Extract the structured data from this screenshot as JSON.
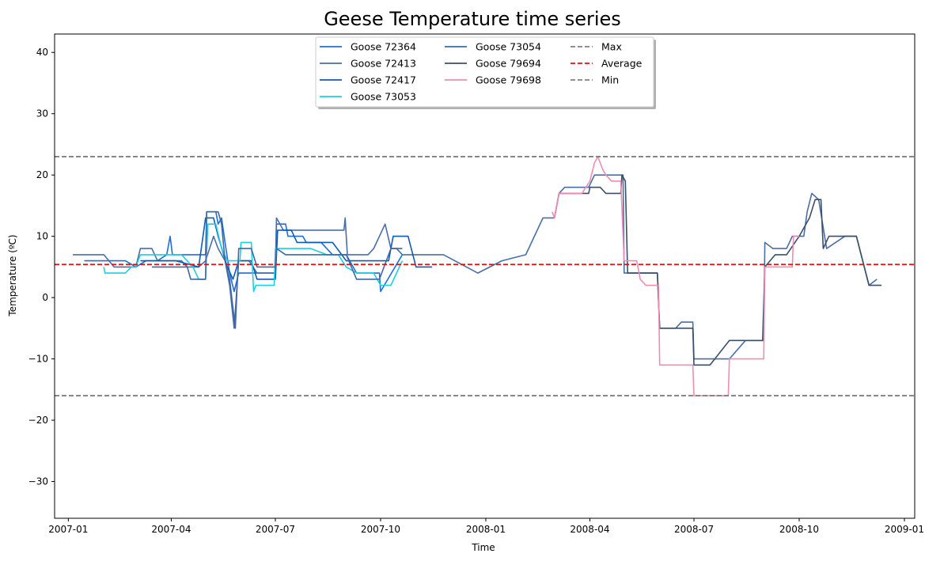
{
  "chart_data": {
    "type": "line",
    "title": "Geese Temperature time series",
    "xlabel": "Time",
    "ylabel": "Temperature (ºC)",
    "xlim": [
      "2006-12-20",
      "2009-01-10"
    ],
    "ylim": [
      -36,
      43
    ],
    "x_ticks": [
      "2007-01",
      "2007-04",
      "2007-07",
      "2007-10",
      "2008-01",
      "2008-04",
      "2008-07",
      "2008-10",
      "2009-01"
    ],
    "y_ticks": [
      -30,
      -20,
      -10,
      0,
      10,
      20,
      30,
      40
    ],
    "y_tick_labels": [
      "−30",
      "−20",
      "−10",
      "0",
      "10",
      "20",
      "30",
      "40"
    ],
    "grid": false,
    "legend_position": "upper center",
    "series": [
      {
        "name": "Goose 72364",
        "color": "#1f6fd6",
        "style": "solid",
        "points": [
          [
            "2007-01-15",
            6
          ],
          [
            "2007-02-20",
            6
          ],
          [
            "2007-03-01",
            5
          ],
          [
            "2007-03-10",
            6
          ],
          [
            "2007-03-20",
            6
          ],
          [
            "2007-03-28",
            7
          ],
          [
            "2007-03-31",
            10
          ],
          [
            "2007-04-02",
            7
          ],
          [
            "2007-04-20",
            7
          ],
          [
            "2007-05-01",
            7
          ],
          [
            "2007-05-02",
            14
          ],
          [
            "2007-05-10",
            14
          ],
          [
            "2007-05-12",
            12
          ],
          [
            "2007-05-15",
            13
          ],
          [
            "2007-05-18",
            9
          ],
          [
            "2007-05-22",
            4
          ],
          [
            "2007-05-26",
            1
          ],
          [
            "2007-05-30",
            4
          ],
          [
            "2007-06-15",
            4
          ],
          [
            "2007-07-01",
            4
          ],
          [
            "2007-07-02",
            12
          ],
          [
            "2007-07-10",
            12
          ],
          [
            "2007-07-12",
            10
          ],
          [
            "2007-07-25",
            10
          ],
          [
            "2007-07-28",
            9
          ],
          [
            "2007-08-10",
            9
          ],
          [
            "2007-08-20",
            7
          ],
          [
            "2007-09-01",
            7
          ],
          [
            "2007-09-10",
            4
          ],
          [
            "2007-09-30",
            4
          ],
          [
            "2007-10-01",
            1
          ],
          [
            "2007-10-20",
            7
          ]
        ]
      },
      {
        "name": "Goose 72413",
        "color": "#4a6ea8",
        "style": "solid",
        "points": [
          [
            "2007-01-05",
            7
          ],
          [
            "2007-02-01",
            7
          ],
          [
            "2007-02-10",
            5
          ],
          [
            "2007-03-01",
            5
          ],
          [
            "2007-03-05",
            8
          ],
          [
            "2007-03-15",
            8
          ],
          [
            "2007-03-20",
            6
          ],
          [
            "2007-04-10",
            6
          ],
          [
            "2007-04-15",
            5
          ],
          [
            "2007-04-25",
            5
          ],
          [
            "2007-05-01",
            6
          ],
          [
            "2007-05-08",
            10
          ],
          [
            "2007-05-12",
            8
          ],
          [
            "2007-05-18",
            6
          ],
          [
            "2007-05-22",
            2
          ],
          [
            "2007-05-26",
            -5
          ],
          [
            "2007-05-30",
            6
          ],
          [
            "2007-06-08",
            6
          ],
          [
            "2007-06-15",
            4
          ],
          [
            "2007-07-01",
            4
          ],
          [
            "2007-07-02",
            13
          ],
          [
            "2007-07-08",
            11
          ],
          [
            "2007-07-20",
            11
          ],
          [
            "2007-08-10",
            11
          ],
          [
            "2007-08-30",
            11
          ],
          [
            "2007-08-31",
            13
          ],
          [
            "2007-09-02",
            7
          ],
          [
            "2007-09-20",
            7
          ],
          [
            "2007-09-25",
            8
          ],
          [
            "2007-10-05",
            12
          ],
          [
            "2007-10-10",
            8
          ],
          [
            "2007-10-15",
            8
          ],
          [
            "2007-10-20",
            7
          ],
          [
            "2007-11-10",
            7
          ],
          [
            "2007-11-25",
            7
          ],
          [
            "2007-12-25",
            4
          ],
          [
            "2008-01-15",
            6
          ],
          [
            "2008-02-05",
            7
          ],
          [
            "2008-02-20",
            13
          ],
          [
            "2008-03-01",
            13
          ],
          [
            "2008-03-05",
            17
          ],
          [
            "2008-03-10",
            18
          ],
          [
            "2008-03-20",
            18
          ],
          [
            "2008-03-31",
            18
          ],
          [
            "2008-04-05",
            20
          ],
          [
            "2008-04-20",
            20
          ],
          [
            "2008-04-30",
            20
          ],
          [
            "2008-05-01",
            4
          ],
          [
            "2008-05-15",
            4
          ],
          [
            "2008-05-30",
            4
          ],
          [
            "2008-06-01",
            -5
          ],
          [
            "2008-06-15",
            -5
          ],
          [
            "2008-06-20",
            -4
          ],
          [
            "2008-06-30",
            -4
          ],
          [
            "2008-07-01",
            -10
          ],
          [
            "2008-07-15",
            -10
          ],
          [
            "2008-08-01",
            -10
          ],
          [
            "2008-08-15",
            -7
          ],
          [
            "2008-08-31",
            -7
          ],
          [
            "2008-09-01",
            9
          ],
          [
            "2008-09-08",
            8
          ],
          [
            "2008-09-20",
            8
          ],
          [
            "2008-09-25",
            10
          ],
          [
            "2008-10-05",
            10
          ],
          [
            "2008-10-08",
            14
          ],
          [
            "2008-10-12",
            17
          ],
          [
            "2008-10-18",
            16
          ],
          [
            "2008-10-25",
            8
          ],
          [
            "2008-11-10",
            10
          ],
          [
            "2008-11-20",
            10
          ],
          [
            "2008-12-01",
            2
          ],
          [
            "2008-12-08",
            3
          ]
        ]
      },
      {
        "name": "Goose 72417",
        "color": "#0b5cb8",
        "style": "solid",
        "points": [
          [
            "2007-03-05",
            6
          ],
          [
            "2007-03-20",
            6
          ],
          [
            "2007-04-05",
            6
          ],
          [
            "2007-04-25",
            5
          ],
          [
            "2007-05-01",
            13
          ],
          [
            "2007-05-08",
            13
          ],
          [
            "2007-05-12",
            10
          ],
          [
            "2007-05-20",
            5
          ],
          [
            "2007-05-25",
            3
          ],
          [
            "2007-05-30",
            6
          ],
          [
            "2007-06-10",
            6
          ],
          [
            "2007-06-15",
            3
          ],
          [
            "2007-07-01",
            3
          ],
          [
            "2007-07-03",
            11
          ],
          [
            "2007-07-15",
            11
          ],
          [
            "2007-07-20",
            9
          ],
          [
            "2007-08-20",
            9
          ],
          [
            "2007-09-01",
            6
          ],
          [
            "2007-10-08",
            6
          ],
          [
            "2007-10-12",
            10
          ],
          [
            "2007-10-25",
            10
          ],
          [
            "2007-11-01",
            5
          ],
          [
            "2007-11-15",
            5
          ]
        ]
      },
      {
        "name": "Goose 73053",
        "color": "#1ad0e0",
        "style": "solid",
        "points": [
          [
            "2007-02-01",
            5
          ],
          [
            "2007-02-02",
            4
          ],
          [
            "2007-02-20",
            4
          ],
          [
            "2007-02-25",
            5
          ],
          [
            "2007-03-01",
            5
          ],
          [
            "2007-03-05",
            7
          ],
          [
            "2007-03-25",
            7
          ],
          [
            "2007-04-10",
            7
          ],
          [
            "2007-04-20",
            5
          ],
          [
            "2007-04-25",
            3
          ],
          [
            "2007-05-01",
            3
          ],
          [
            "2007-05-03",
            12
          ],
          [
            "2007-05-10",
            12
          ],
          [
            "2007-05-15",
            8
          ],
          [
            "2007-05-20",
            6
          ],
          [
            "2007-05-31",
            6
          ],
          [
            "2007-06-01",
            9
          ],
          [
            "2007-06-10",
            9
          ],
          [
            "2007-06-12",
            1
          ],
          [
            "2007-06-14",
            2
          ],
          [
            "2007-06-30",
            2
          ],
          [
            "2007-07-01",
            8
          ],
          [
            "2007-07-15",
            8
          ],
          [
            "2007-08-01",
            8
          ],
          [
            "2007-08-15",
            7
          ],
          [
            "2007-08-25",
            7
          ],
          [
            "2007-09-01",
            5
          ],
          [
            "2007-09-10",
            4
          ],
          [
            "2007-09-25",
            4
          ],
          [
            "2007-10-01",
            2
          ],
          [
            "2007-10-10",
            2
          ],
          [
            "2007-10-20",
            6
          ]
        ]
      },
      {
        "name": "Goose 73054",
        "color": "#3f67a8",
        "style": "solid",
        "points": [
          [
            "2007-03-15",
            5
          ],
          [
            "2007-04-01",
            5
          ],
          [
            "2007-04-15",
            5
          ],
          [
            "2007-04-18",
            3
          ],
          [
            "2007-05-01",
            3
          ],
          [
            "2007-05-02",
            14
          ],
          [
            "2007-05-12",
            14
          ],
          [
            "2007-05-15",
            12
          ],
          [
            "2007-05-18",
            6
          ],
          [
            "2007-05-22",
            3
          ],
          [
            "2007-05-27",
            -5
          ],
          [
            "2007-05-30",
            8
          ],
          [
            "2007-06-10",
            8
          ],
          [
            "2007-06-15",
            5
          ],
          [
            "2007-07-01",
            5
          ],
          [
            "2007-07-02",
            8
          ],
          [
            "2007-07-10",
            7
          ],
          [
            "2007-08-01",
            7
          ],
          [
            "2007-09-01",
            7
          ],
          [
            "2007-09-10",
            3
          ],
          [
            "2007-09-30",
            3
          ],
          [
            "2007-10-10",
            8
          ],
          [
            "2007-10-20",
            8
          ]
        ]
      },
      {
        "name": "Goose 79694",
        "color": "#3a5068",
        "style": "solid",
        "points": [
          [
            "2008-03-01",
            13
          ],
          [
            "2008-03-05",
            17
          ],
          [
            "2008-03-20",
            17
          ],
          [
            "2008-03-31",
            17
          ],
          [
            "2008-04-01",
            18
          ],
          [
            "2008-04-10",
            18
          ],
          [
            "2008-04-15",
            17
          ],
          [
            "2008-04-28",
            17
          ],
          [
            "2008-04-29",
            20
          ],
          [
            "2008-05-02",
            19
          ],
          [
            "2008-05-04",
            4
          ],
          [
            "2008-05-30",
            4
          ],
          [
            "2008-06-01",
            -5
          ],
          [
            "2008-06-30",
            -5
          ],
          [
            "2008-07-01",
            -11
          ],
          [
            "2008-07-15",
            -11
          ],
          [
            "2008-08-01",
            -7
          ],
          [
            "2008-08-30",
            -7
          ],
          [
            "2008-09-01",
            5
          ],
          [
            "2008-09-10",
            7
          ],
          [
            "2008-09-20",
            7
          ],
          [
            "2008-10-01",
            10
          ],
          [
            "2008-10-10",
            13
          ],
          [
            "2008-10-15",
            16
          ],
          [
            "2008-10-20",
            16
          ],
          [
            "2008-10-22",
            8
          ],
          [
            "2008-10-27",
            10
          ],
          [
            "2008-11-20",
            10
          ],
          [
            "2008-12-01",
            2
          ],
          [
            "2008-12-12",
            2
          ]
        ]
      },
      {
        "name": "Goose 79698",
        "color": "#f08cb3",
        "style": "solid",
        "points": [
          [
            "2008-02-28",
            14
          ],
          [
            "2008-03-01",
            13
          ],
          [
            "2008-03-05",
            17
          ],
          [
            "2008-03-25",
            17
          ],
          [
            "2008-04-01",
            19
          ],
          [
            "2008-04-05",
            22
          ],
          [
            "2008-04-08",
            23
          ],
          [
            "2008-04-12",
            21
          ],
          [
            "2008-04-15",
            20
          ],
          [
            "2008-04-20",
            19
          ],
          [
            "2008-04-28",
            19
          ],
          [
            "2008-05-01",
            6
          ],
          [
            "2008-05-12",
            6
          ],
          [
            "2008-05-15",
            3
          ],
          [
            "2008-05-20",
            2
          ],
          [
            "2008-05-31",
            2
          ],
          [
            "2008-06-01",
            -11
          ],
          [
            "2008-06-30",
            -11
          ],
          [
            "2008-07-01",
            -16
          ],
          [
            "2008-07-31",
            -16
          ],
          [
            "2008-08-01",
            -10
          ],
          [
            "2008-08-31",
            -10
          ],
          [
            "2008-09-01",
            5
          ],
          [
            "2008-09-25",
            5
          ],
          [
            "2008-09-26",
            10
          ],
          [
            "2008-10-01",
            10
          ]
        ]
      },
      {
        "name": "Max",
        "color": "#808080",
        "style": "dashed",
        "hline": 23
      },
      {
        "name": "Average",
        "color": "#e01010",
        "style": "dashed",
        "hline": 5.4
      },
      {
        "name": "Min",
        "color": "#808080",
        "style": "dashed",
        "hline": -16
      }
    ]
  }
}
